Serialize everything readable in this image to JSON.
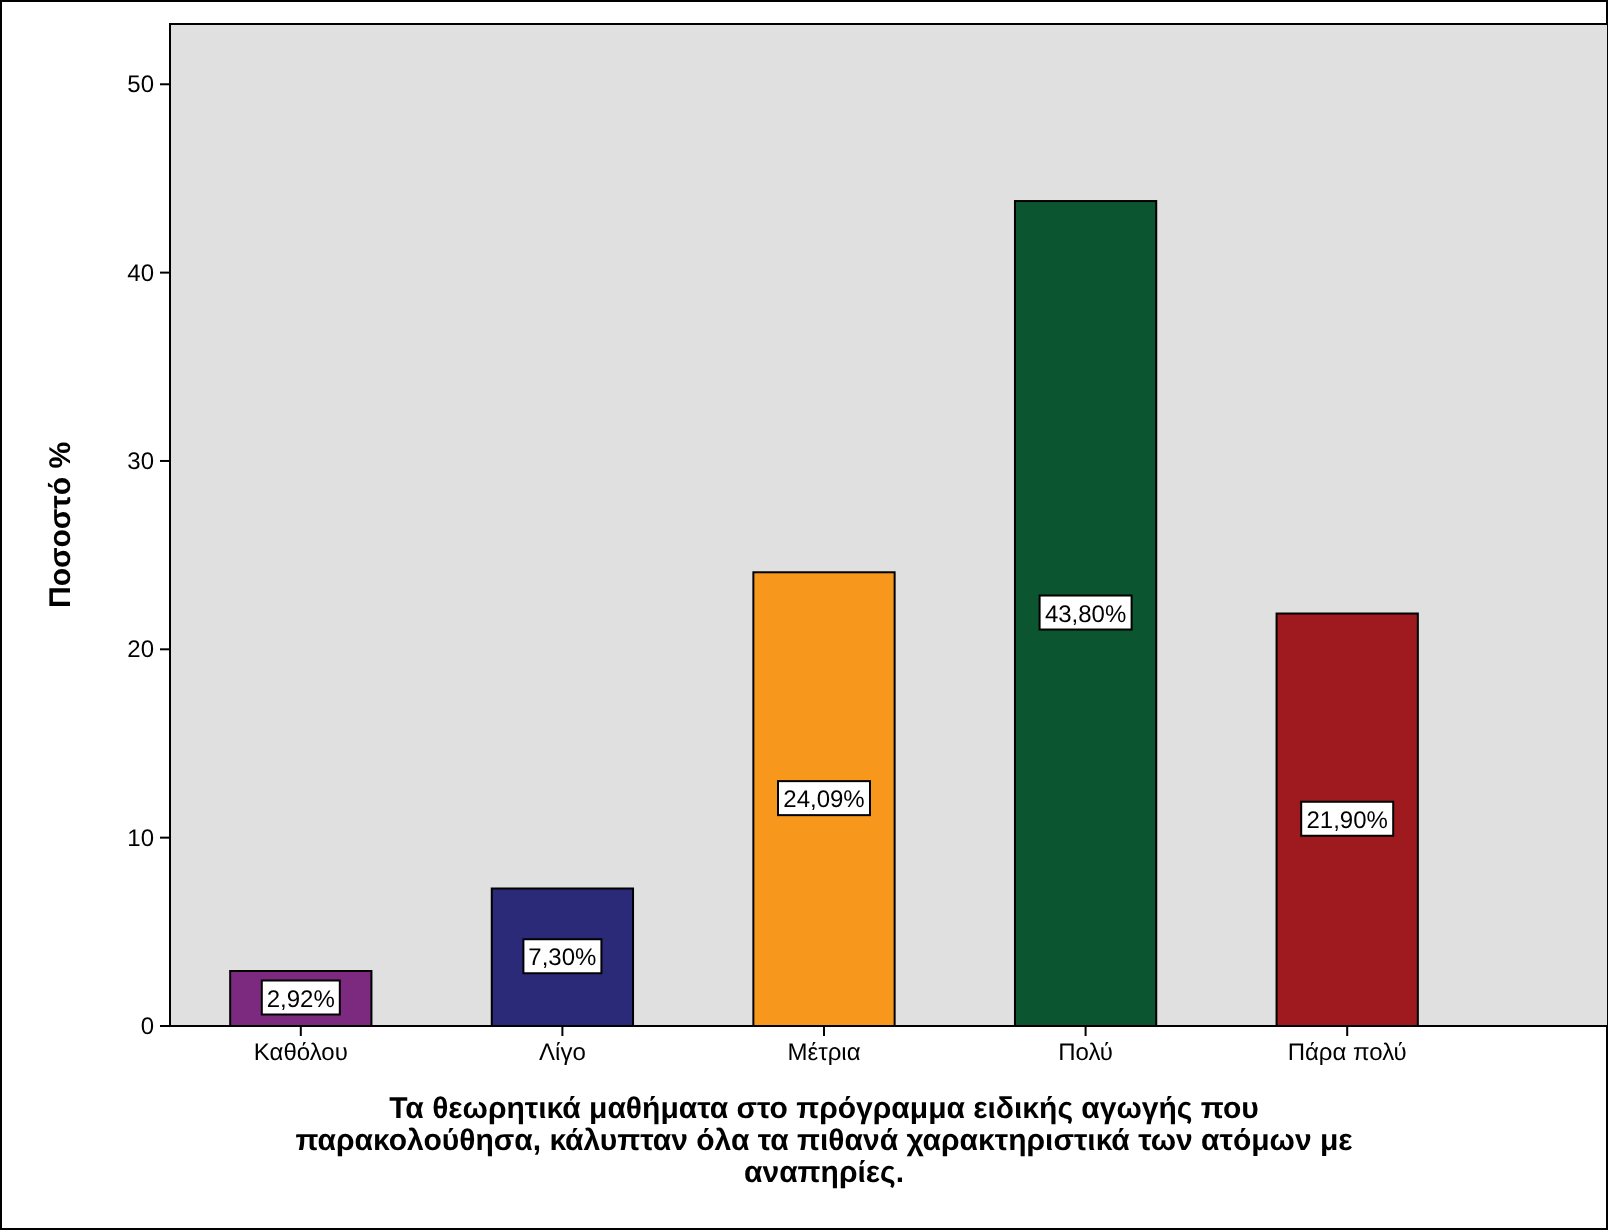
{
  "chart_data": {
    "type": "bar",
    "xlabel": "Τα θεωρητικά μαθήματα στο πρόγραμμα ειδικής αγωγής που παρακολούθησα, κάλυπταν όλα τα πιθανά χαρακτηριστικά των ατόμων με αναπηρίες.",
    "ylabel": "Ποσοστό %",
    "categories": [
      "Καθόλου",
      "Λίγο",
      "Μέτρια",
      "Πολύ",
      "Πάρα πολύ"
    ],
    "values": [
      2.92,
      7.3,
      24.09,
      43.8,
      21.9
    ],
    "colors": [
      "#7b2a80",
      "#2b2a78",
      "#f7981d",
      "#0b5530",
      "#9e1a1e"
    ],
    "value_labels": [
      "2,92%",
      "7,30%",
      "24,09%",
      "43,80%",
      "21,90%"
    ],
    "ylim": [
      0,
      53.2
    ],
    "yticks": [
      0,
      10,
      20,
      30,
      40,
      50
    ],
    "grid": false
  }
}
